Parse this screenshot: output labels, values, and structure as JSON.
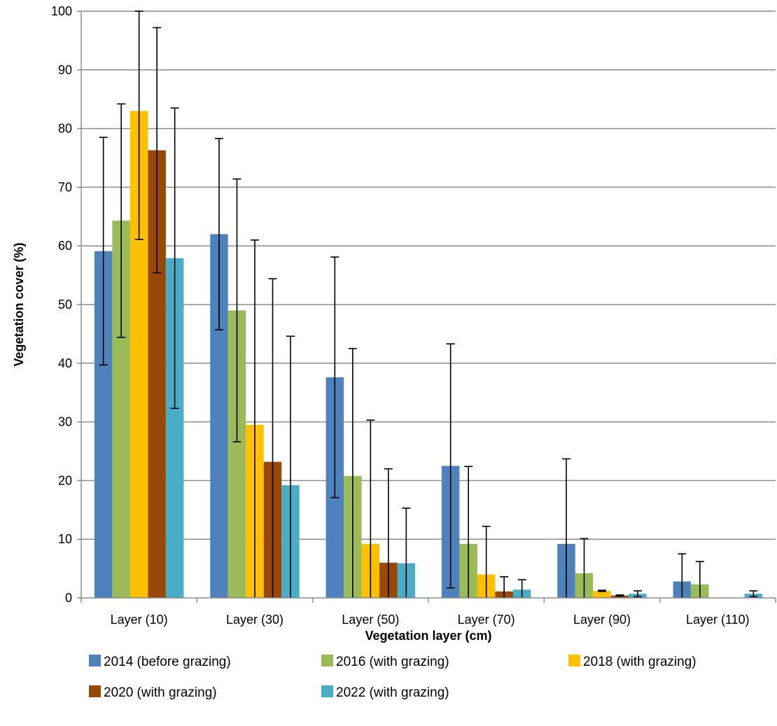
{
  "chart_data": {
    "type": "bar",
    "title": "",
    "xlabel": "Vegetation layer (cm)",
    "ylabel": "Vegetation cover (%)",
    "ylim": [
      0,
      100
    ],
    "yticks": [
      0,
      10,
      20,
      30,
      40,
      50,
      60,
      70,
      80,
      90,
      100
    ],
    "grid": "horizontal",
    "legend_position": "bottom",
    "categories": [
      "Layer (10)",
      "Layer (30)",
      "Layer (50)",
      "Layer (70)",
      "Layer (90)",
      "Layer (110)"
    ],
    "series": [
      {
        "name": "2014 (before grazing)",
        "color": "#4F81BD",
        "values": [
          59.1,
          62.0,
          37.6,
          22.5,
          9.2,
          2.8
        ],
        "error": [
          19.4,
          16.3,
          20.5,
          20.8,
          14.5,
          4.7
        ]
      },
      {
        "name": "2016 (with grazing)",
        "color": "#9BBB59",
        "values": [
          64.3,
          49.0,
          20.8,
          9.2,
          4.2,
          2.3
        ],
        "error": [
          19.9,
          22.4,
          21.7,
          13.2,
          5.9,
          3.9
        ]
      },
      {
        "name": "2018 (with grazing)",
        "color": "#FFC000",
        "values": [
          83.0,
          29.5,
          9.2,
          4.0,
          1.2,
          0
        ],
        "error": [
          21.9,
          31.5,
          21.1,
          8.2,
          0.1,
          0
        ]
      },
      {
        "name": "2020 (with grazing)",
        "color": "#984807",
        "values": [
          76.3,
          23.2,
          6.0,
          1.1,
          0.4,
          0
        ],
        "error": [
          20.9,
          31.2,
          16.0,
          2.5,
          0.1,
          0
        ]
      },
      {
        "name": "2022 (with grazing)",
        "color": "#4BACC6",
        "values": [
          57.9,
          19.2,
          5.9,
          1.4,
          0.7,
          0.7
        ],
        "error": [
          25.6,
          25.4,
          9.4,
          1.7,
          0.5,
          0.5
        ]
      }
    ]
  }
}
